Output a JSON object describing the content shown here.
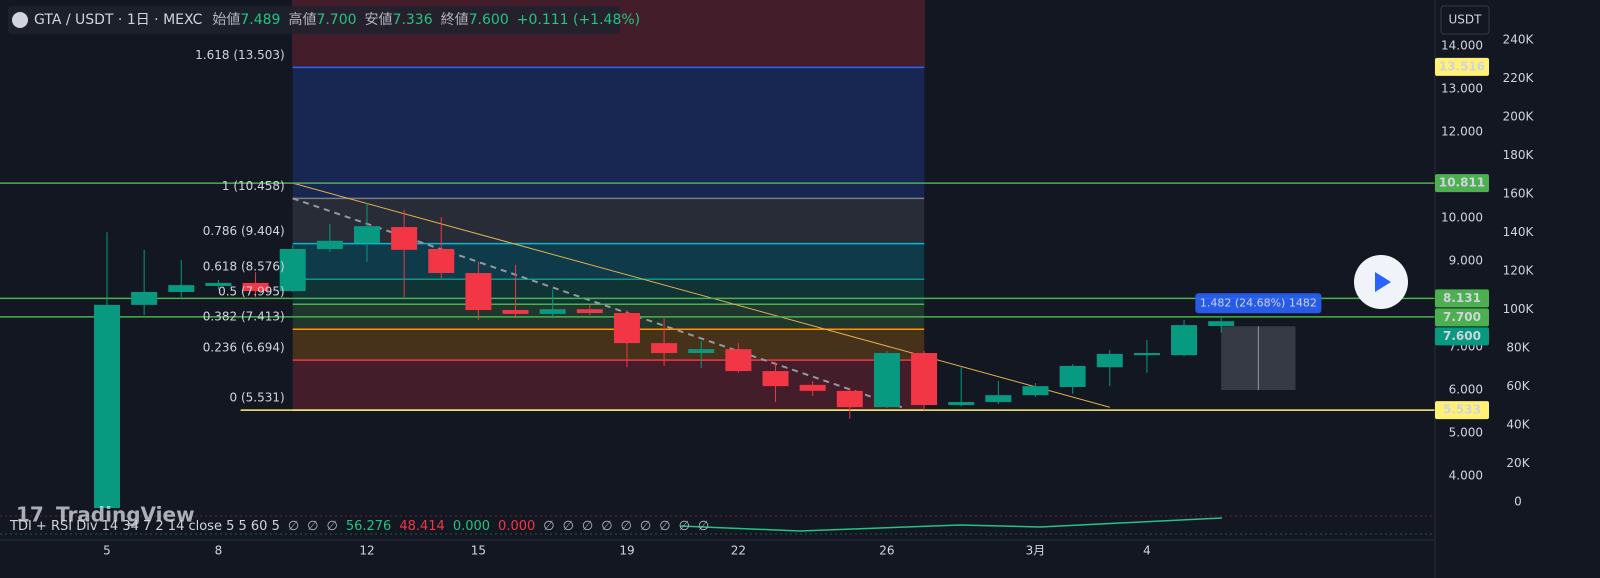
{
  "header": {
    "symbol": "GTA / USDT · 1日 · MEXC",
    "fields": [
      {
        "label": "始値",
        "value": "7.489"
      },
      {
        "label": "高値",
        "value": "7.700"
      },
      {
        "label": "安値",
        "value": "7.336"
      },
      {
        "label": "終値",
        "value": "7.600"
      }
    ],
    "change": "+0.111 (+1.48%)"
  },
  "currency_button": "USDT",
  "watermark": "TradingView",
  "indicator": {
    "name": "TDI + RSI Div 14 34 7 2 14 close 5 5 60 5",
    "values": [
      {
        "text": "∅",
        "color": "#b2b5be"
      },
      {
        "text": "∅",
        "color": "#b2b5be"
      },
      {
        "text": "∅",
        "color": "#b2b5be"
      },
      {
        "text": "56.276",
        "color": "#26c281"
      },
      {
        "text": "48.414",
        "color": "#f23645"
      },
      {
        "text": "0.000",
        "color": "#26c281"
      },
      {
        "text": "0.000",
        "color": "#f23645"
      },
      {
        "text": "∅",
        "color": "#b2b5be"
      },
      {
        "text": "∅",
        "color": "#b2b5be"
      },
      {
        "text": "∅",
        "color": "#b2b5be"
      },
      {
        "text": "∅",
        "color": "#b2b5be"
      },
      {
        "text": "∅",
        "color": "#b2b5be"
      },
      {
        "text": "∅",
        "color": "#b2b5be"
      },
      {
        "text": "∅",
        "color": "#b2b5be"
      },
      {
        "text": "∅",
        "color": "#b2b5be"
      },
      {
        "text": "∅",
        "color": "#b2b5be"
      }
    ]
  },
  "chart_data": {
    "type": "candlestick",
    "categories": [
      "5",
      null,
      null,
      "8",
      null,
      null,
      null,
      "12",
      null,
      null,
      "15",
      null,
      null,
      null,
      "19",
      null,
      null,
      "22",
      null,
      null,
      null,
      "26",
      null,
      null,
      null,
      "3月",
      null,
      null,
      "4",
      null,
      null
    ],
    "open": [
      3.0,
      7.98,
      8.28,
      8.42,
      8.49,
      8.3,
      9.28,
      9.42,
      9.79,
      9.28,
      8.72,
      7.86,
      7.77,
      7.88,
      7.79,
      7.09,
      6.86,
      6.95,
      6.44,
      6.12,
      5.98,
      5.6,
      6.86,
      5.65,
      5.72,
      5.88,
      6.07,
      6.53,
      6.81,
      6.81,
      7.489
    ],
    "high": [
      9.67,
      9.26,
      9.02,
      8.56,
      8.74,
      9.37,
      9.86,
      10.35,
      10.19,
      10.02,
      8.98,
      8.91,
      8.33,
      7.98,
      7.86,
      7.67,
      7.14,
      7.09,
      6.65,
      6.21,
      6.05,
      6.91,
      6.91,
      6.53,
      6.21,
      6.16,
      6.6,
      6.93,
      7.16,
      7.63,
      7.7
    ],
    "low": [
      3.0,
      7.74,
      8.16,
      8.33,
      8.16,
      8.28,
      9.21,
      8.98,
      8.16,
      8.6,
      7.63,
      7.67,
      7.67,
      7.74,
      6.53,
      6.56,
      6.51,
      6.4,
      5.72,
      5.86,
      5.33,
      5.58,
      5.53,
      5.62,
      5.67,
      5.84,
      5.91,
      6.09,
      6.4,
      6.79,
      7.336
    ],
    "close": [
      7.98,
      8.28,
      8.44,
      8.49,
      8.3,
      9.28,
      9.47,
      9.81,
      9.26,
      8.72,
      7.86,
      7.77,
      7.88,
      7.79,
      7.09,
      6.86,
      6.95,
      6.44,
      6.09,
      5.98,
      5.6,
      6.86,
      5.65,
      5.72,
      5.88,
      6.09,
      6.56,
      6.84,
      6.86,
      7.51,
      7.6
    ],
    "up_color": "#089981",
    "down_color": "#f23645",
    "ylim": [
      3.256,
      15.07
    ],
    "yticks": [
      {
        "value": 4,
        "label": "4.000"
      },
      {
        "value": 5,
        "label": "5.000"
      },
      {
        "value": 6,
        "label": "6.000"
      },
      {
        "value": 7,
        "label": "7.000"
      },
      {
        "value": 9,
        "label": "9.000"
      },
      {
        "value": 10,
        "label": "10.000"
      },
      {
        "value": 12,
        "label": "12.000"
      },
      {
        "value": 13,
        "label": "13.000"
      },
      {
        "value": 14,
        "label": "14.000"
      }
    ],
    "y2lim": [
      -3100,
      260800
    ],
    "y2ticks": [
      {
        "value": 0,
        "label": "0"
      },
      {
        "value": 20000,
        "label": "20K"
      },
      {
        "value": 40000,
        "label": "40K"
      },
      {
        "value": 60000,
        "label": "60K"
      },
      {
        "value": 80000,
        "label": "80K"
      },
      {
        "value": 100000,
        "label": "100K"
      },
      {
        "value": 120000,
        "label": "120K"
      },
      {
        "value": 140000,
        "label": "140K"
      },
      {
        "value": 160000,
        "label": "160K"
      },
      {
        "value": 180000,
        "label": "180K"
      },
      {
        "value": 200000,
        "label": "200K"
      },
      {
        "value": 220000,
        "label": "220K"
      },
      {
        "value": 240000,
        "label": "240K"
      }
    ],
    "fib": {
      "from": 5,
      "to": 22,
      "levels": [
        {
          "label": "1.618 (13.503)",
          "value": 13.503,
          "color": "#2962ff"
        },
        {
          "label": "1 (10.458)",
          "value": 10.458,
          "color": "#787b86"
        },
        {
          "label": "0.786 (9.404)",
          "value": 9.404,
          "color": "#00bcd4"
        },
        {
          "label": "0.618 (8.576)",
          "value": 8.576,
          "color": "#089981"
        },
        {
          "label": "0.5 (7.995)",
          "value": 7.995,
          "color": "#4caf50"
        },
        {
          "label": "0.382 (7.413)",
          "value": 7.413,
          "color": "#ff9800"
        },
        {
          "label": "0.236 (6.694)",
          "value": 6.694,
          "color": "#f23645"
        },
        {
          "label": "0 (5.531)",
          "value": 5.531,
          "color": "#9598a1"
        }
      ]
    },
    "price_lines": [
      {
        "value": 10.811,
        "label": "10.811",
        "color": "#4caf50"
      },
      {
        "value": 8.131,
        "label": "8.131",
        "color": "#4caf50"
      },
      {
        "value": 7.7,
        "label": "7.700",
        "color": "#4caf50"
      },
      {
        "value": 5.533,
        "label": "5.533",
        "color": "#fff176",
        "start": 4
      }
    ],
    "axis_labels": [
      {
        "value": 13.516,
        "label": "13.516",
        "color": "#fff176"
      },
      {
        "value": 7.6,
        "label": "7.600",
        "color": "#089981"
      }
    ],
    "trend_lines": [
      {
        "from": [
          5,
          10.811
        ],
        "to": [
          27,
          5.6
        ],
        "color": "#e0b050",
        "dash": false
      },
      {
        "from": [
          5,
          10.458
        ],
        "to": [
          21.4,
          5.6
        ],
        "color": "#9598a1",
        "dash": true
      }
    ],
    "measure": {
      "x": [
        30,
        32
      ],
      "y": [
        6.0,
        7.482
      ],
      "label": "1.482 (24.68%) 1482"
    }
  }
}
